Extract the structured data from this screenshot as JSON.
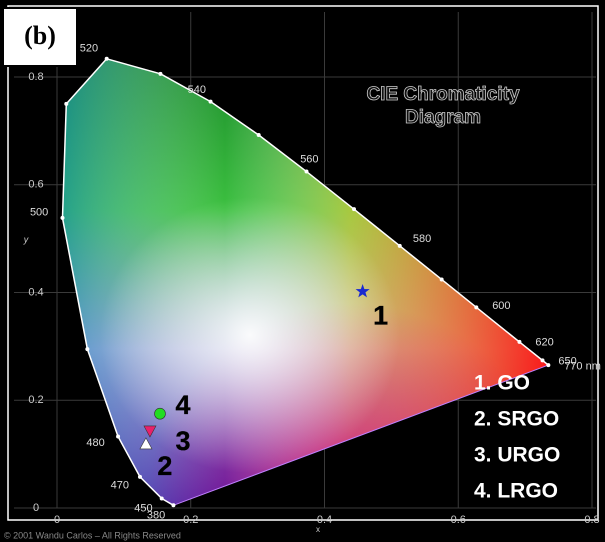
{
  "chart_data": {
    "type": "scatter",
    "panel_label": "(b)",
    "title_lines": [
      "CIE Chromaticity",
      "Diagram"
    ],
    "xlabel": "x",
    "ylabel": "y",
    "copyright": "© 2001 Wandu Carlos – All Rights Reserved",
    "xlim": [
      0,
      0.8
    ],
    "ylim": [
      0,
      0.8
    ],
    "xticks": [
      0,
      0.2,
      0.4,
      0.6,
      0.8
    ],
    "yticks": [
      0,
      0.2,
      0.4,
      0.6,
      0.8
    ],
    "grid": true,
    "locus": {
      "x": [
        0.1741,
        0.1566,
        0.1241,
        0.0913,
        0.0454,
        0.0082,
        0.0139,
        0.0743,
        0.1547,
        0.2296,
        0.3016,
        0.3731,
        0.4441,
        0.5125,
        0.5752,
        0.627,
        0.6915,
        0.726,
        0.7347
      ],
      "y": [
        0.005,
        0.0177,
        0.0578,
        0.1327,
        0.295,
        0.5384,
        0.7502,
        0.8338,
        0.8059,
        0.7543,
        0.6923,
        0.6245,
        0.5547,
        0.4866,
        0.4242,
        0.3725,
        0.3083,
        0.274,
        0.2653
      ],
      "labels": [
        "380",
        "450",
        "470",
        "480",
        null,
        "500",
        null,
        "520",
        null,
        "540",
        null,
        "560",
        null,
        "580",
        null,
        "600",
        "620",
        "650",
        "770 nm"
      ]
    },
    "legend": "lower right",
    "series": [
      {
        "name": "1. GO",
        "point_label": "1",
        "marker": "star",
        "color": "#1a2ad0",
        "x": [
          0.457
        ],
        "y": [
          0.402
        ]
      },
      {
        "name": "2. SRGO",
        "point_label": "2",
        "marker": "triangle-up",
        "color": "#ffffff",
        "x": [
          0.133
        ],
        "y": [
          0.119
        ]
      },
      {
        "name": "3. URGO",
        "point_label": "3",
        "marker": "triangle-down",
        "color": "#e8206a",
        "x": [
          0.139
        ],
        "y": [
          0.143
        ]
      },
      {
        "name": "4. LRGO",
        "point_label": "4",
        "marker": "circle",
        "color": "#22dd22",
        "x": [
          0.154
        ],
        "y": [
          0.175
        ]
      }
    ]
  }
}
